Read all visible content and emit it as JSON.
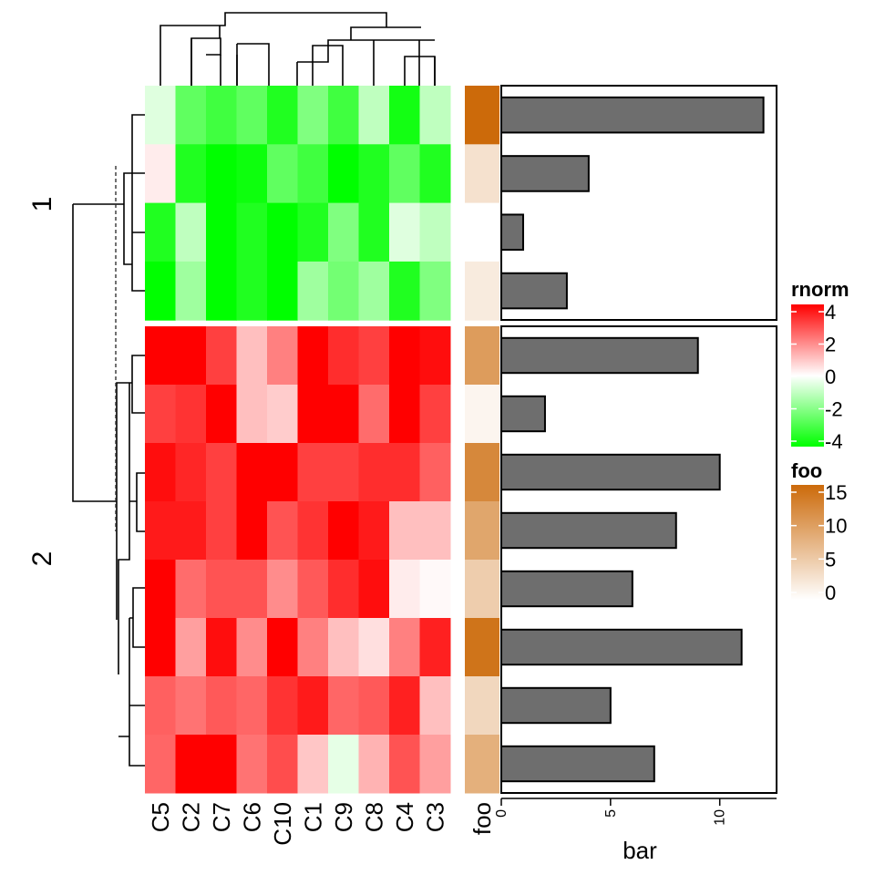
{
  "chart_data": {
    "type": "heatmap",
    "columns": [
      "C5",
      "C2",
      "C7",
      "C6",
      "C10",
      "C1",
      "C9",
      "C8",
      "C4",
      "C3"
    ],
    "row_groups": [
      {
        "label": "1",
        "rows": 4
      },
      {
        "label": "2",
        "rows": 8
      }
    ],
    "matrix": [
      [
        -0.5,
        -2.5,
        -3,
        -2.5,
        -3.5,
        -2,
        -3,
        -1,
        -3.7,
        -1
      ],
      [
        0.3,
        -3.5,
        -4,
        -3.8,
        -2.5,
        -3,
        -4.2,
        -3.5,
        -2.5,
        -3.5
      ],
      [
        -3.5,
        -1,
        -4,
        -3.5,
        -4,
        -3.5,
        -2,
        -3.5,
        -0.5,
        -1
      ],
      [
        -4.5,
        -1.5,
        -4.2,
        -3.5,
        -4.5,
        -1.5,
        -2.2,
        -1.5,
        -3.5,
        -2
      ],
      [
        4,
        4.5,
        3,
        1,
        2,
        4.5,
        3.3,
        3,
        4.2,
        3.8
      ],
      [
        3,
        3.2,
        4.5,
        1,
        0.8,
        4.5,
        4.5,
        2.3,
        4.5,
        3
      ],
      [
        3.8,
        3.4,
        3,
        4.5,
        4.5,
        3,
        3,
        3.3,
        3.3,
        2.5
      ],
      [
        3.6,
        3.6,
        3,
        4.5,
        2.7,
        3.2,
        4.6,
        3.6,
        1,
        1
      ],
      [
        4.5,
        2.3,
        2.7,
        2.7,
        1.8,
        2.6,
        3.3,
        3.8,
        0.3,
        0.1
      ],
      [
        4.6,
        1.5,
        3.8,
        1.8,
        4.6,
        2,
        1,
        0.5,
        2,
        3.5
      ],
      [
        2.5,
        2.2,
        2.6,
        2.4,
        3.2,
        3.6,
        2.4,
        2.6,
        3.5,
        1
      ],
      [
        2.4,
        4.8,
        4.8,
        2.2,
        2.8,
        0.9,
        -0.4,
        1.2,
        2.7,
        1.5
      ]
    ],
    "foo": {
      "title": "foo",
      "values": [
        15,
        3,
        0,
        2,
        10,
        1,
        12,
        9,
        5,
        14,
        4,
        8
      ],
      "legend_ticks": [
        "15",
        "10",
        "5",
        "0"
      ],
      "max": 15
    },
    "bar": {
      "xlabel": "bar",
      "values": [
        12,
        4,
        1,
        3,
        9,
        2,
        10,
        8,
        6,
        11,
        5,
        7
      ],
      "ticks": [
        "0",
        "5",
        "10"
      ],
      "xlim": [
        0,
        12.6
      ]
    },
    "rnorm_legend": {
      "title": "rnorm",
      "ticks": [
        "4",
        "2",
        "0",
        "-2",
        "-4"
      ],
      "range": [
        -4,
        4
      ]
    },
    "annotation_label": "foo",
    "colors": {
      "high": "#FF0000",
      "mid": "#FFFFFF",
      "low": "#00FF00",
      "foo_high": "#CC6A0A",
      "bar_fill": "#6E6E6E",
      "dend_line": "#000000"
    }
  }
}
